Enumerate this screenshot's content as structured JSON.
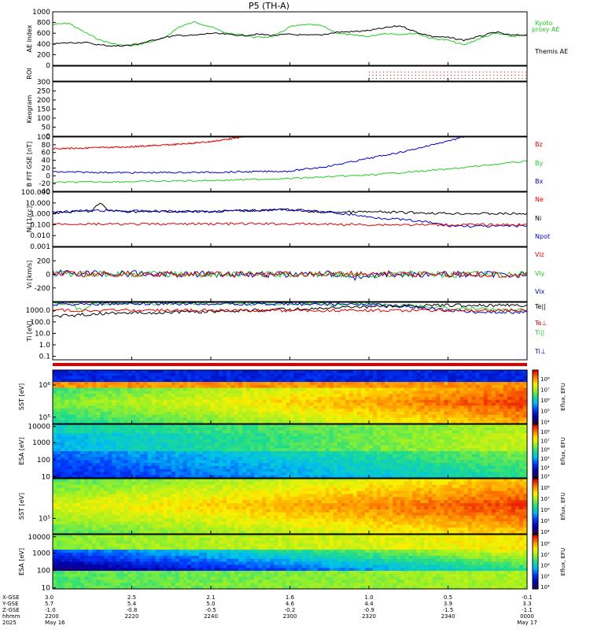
{
  "title": "P5 (TH-A)",
  "colors": {
    "black": "#000000",
    "red": "#dd0000",
    "green": "#22cc22",
    "blue": "#0000cc"
  },
  "chart_data": [
    {
      "type": "line",
      "panel": "ae",
      "ylabel": "AE index",
      "ylim": [
        0,
        1000
      ],
      "yticks": [
        "0",
        "200",
        "400",
        "600",
        "800",
        "1000"
      ],
      "legend": [
        "Kyoto",
        "proxy AE",
        "Themis AE"
      ],
      "series": [
        {
          "name": "Kyoto proxy AE",
          "color": "green",
          "x": [
            0,
            4,
            8,
            12,
            16,
            20,
            24,
            28,
            32,
            36,
            40,
            44,
            48,
            52,
            56,
            60,
            64,
            68,
            72,
            76,
            80,
            84,
            88,
            92,
            96,
            100,
            104,
            108,
            112,
            116,
            120
          ],
          "y": [
            760,
            790,
            620,
            470,
            390,
            360,
            430,
            500,
            720,
            810,
            720,
            600,
            560,
            520,
            540,
            720,
            760,
            740,
            600,
            560,
            540,
            600,
            580,
            600,
            500,
            470,
            380,
            500,
            600,
            540,
            560
          ]
        },
        {
          "name": "Themis AE",
          "color": "black",
          "x": [
            0,
            4,
            8,
            12,
            16,
            20,
            24,
            28,
            32,
            36,
            40,
            44,
            48,
            52,
            56,
            60,
            64,
            68,
            72,
            76,
            80,
            84,
            88,
            92,
            96,
            100,
            104,
            108,
            112,
            116,
            120
          ],
          "y": [
            400,
            420,
            430,
            380,
            360,
            380,
            440,
            520,
            560,
            560,
            600,
            580,
            560,
            580,
            560,
            580,
            560,
            570,
            620,
            630,
            650,
            700,
            740,
            620,
            540,
            520,
            470,
            540,
            620,
            560,
            570
          ]
        }
      ]
    },
    {
      "type": "scatter",
      "panel": "roi",
      "ylabel": "ROI",
      "series": [
        {
          "name": "",
          "color": "red",
          "x_start": 80,
          "x_end": 120,
          "rows": 3
        }
      ]
    },
    {
      "type": "line",
      "panel": "keogram",
      "ylabel": "Keogram",
      "ylim": [
        0,
        300
      ],
      "yticks": [
        "0",
        "50",
        "100",
        "150",
        "200",
        "250",
        "300"
      ]
    },
    {
      "type": "line",
      "panel": "bfield",
      "ylabel": "B FIT GSE [nT]",
      "ylim": [
        -40,
        100
      ],
      "yticks": [
        "-40",
        "-20",
        "0",
        "20",
        "40",
        "60",
        "80",
        "100"
      ],
      "legend": [
        "Bz",
        "By",
        "Bx"
      ],
      "series": [
        {
          "name": "Bz",
          "color": "red",
          "x": [
            0,
            10,
            20,
            30,
            40,
            48
          ],
          "y": [
            70,
            72,
            75,
            80,
            88,
            100
          ]
        },
        {
          "name": "Bx",
          "color": "blue",
          "x": [
            0,
            10,
            20,
            40,
            60,
            70,
            80,
            90,
            100,
            104
          ],
          "y": [
            10,
            9,
            8,
            9,
            12,
            25,
            45,
            65,
            90,
            100
          ]
        },
        {
          "name": "By",
          "color": "green",
          "x": [
            0,
            10,
            20,
            40,
            60,
            80,
            100,
            120
          ],
          "y": [
            -17,
            -16,
            -15,
            -12,
            -7,
            2,
            17,
            38
          ]
        }
      ]
    },
    {
      "type": "line",
      "panel": "density",
      "ylabel": "Ni [1/cc]",
      "yscale": "log",
      "ylim": [
        0.001,
        100
      ],
      "yticks": [
        "0.001",
        "0.010",
        "0.100",
        "1.000",
        "10.000",
        "100.000"
      ],
      "legend": [
        "Ne",
        "Ni",
        "Npot"
      ],
      "series": [
        {
          "name": "Ni",
          "color": "black",
          "x": [
            0,
            5,
            10,
            12,
            14,
            20,
            40,
            60,
            64,
            70,
            80,
            100,
            120
          ],
          "y": [
            1.2,
            1.5,
            1.8,
            8,
            2,
            1.6,
            1.7,
            2.5,
            1.6,
            1.4,
            1.5,
            1.1,
            1.0
          ]
        },
        {
          "name": "Npot",
          "color": "blue",
          "x": [
            0,
            10,
            20,
            40,
            60,
            70,
            80,
            90,
            100,
            110,
            120
          ],
          "y": [
            1.5,
            2.0,
            1.8,
            1.6,
            2.4,
            1.3,
            0.5,
            0.25,
            0.08,
            0.07,
            0.08
          ]
        },
        {
          "name": "Ne",
          "color": "red",
          "x": [
            0,
            20,
            40,
            60,
            80,
            100,
            120
          ],
          "y": [
            0.12,
            0.11,
            0.12,
            0.12,
            0.1,
            0.1,
            0.1
          ]
        }
      ]
    },
    {
      "type": "line",
      "panel": "velocity",
      "ylabel": "Vi [km/s]",
      "ylim": [
        -400,
        400
      ],
      "yticks": [
        "-200",
        "0",
        "200"
      ],
      "legend": [
        "Viz",
        "Viy",
        "Vix"
      ],
      "series": [
        {
          "name": "Vix",
          "color": "blue",
          "x": [
            0,
            20,
            40,
            60,
            70,
            75,
            78,
            80,
            85,
            90,
            100,
            120
          ],
          "y": [
            20,
            10,
            5,
            0,
            10,
            -20,
            -60,
            -20,
            0,
            5,
            0,
            0
          ]
        },
        {
          "name": "Viy",
          "color": "green",
          "x": [
            0,
            20,
            40,
            60,
            80,
            100,
            120
          ],
          "y": [
            10,
            5,
            0,
            0,
            -5,
            0,
            5
          ]
        },
        {
          "name": "Viz",
          "color": "red",
          "x": [
            0,
            20,
            40,
            60,
            80,
            100,
            120
          ],
          "y": [
            0,
            5,
            0,
            0,
            10,
            5,
            0
          ]
        }
      ]
    },
    {
      "type": "line",
      "panel": "temperature",
      "ylabel": "Ti [eV]",
      "yscale": "log",
      "ylim": [
        0.05,
        5000
      ],
      "yticks": [
        "0.1",
        "1.0",
        "10.0",
        "100.0",
        "1000.0"
      ],
      "legend": [
        "Te||",
        "Te⊥",
        "Ti||",
        "Ti⊥"
      ],
      "series": [
        {
          "name": "Ti||",
          "color": "green",
          "x": [
            0,
            5,
            6,
            8,
            10,
            20,
            40,
            60,
            80,
            90,
            100,
            110,
            120
          ],
          "y": [
            4000,
            3800,
            1500,
            800,
            3500,
            4000,
            3800,
            3500,
            3500,
            2500,
            1500,
            1200,
            1200
          ]
        },
        {
          "name": "Ti⊥",
          "color": "blue",
          "x": [
            0,
            20,
            40,
            60,
            80,
            90,
            100,
            110,
            120
          ],
          "y": [
            3500,
            3600,
            3800,
            3500,
            3200,
            2000,
            900,
            700,
            700
          ]
        },
        {
          "name": "Te||",
          "color": "black",
          "x": [
            0,
            5,
            10,
            20,
            30,
            40,
            60,
            80,
            90,
            100,
            110,
            120
          ],
          "y": [
            300,
            350,
            500,
            600,
            700,
            800,
            1200,
            2000,
            2500,
            2700,
            2800,
            2800
          ]
        },
        {
          "name": "Te⊥",
          "color": "red",
          "x": [
            0,
            120
          ],
          "y": [
            1000,
            1000
          ]
        }
      ]
    },
    {
      "type": "heatmap",
      "panel": "sst_ion",
      "ylabel": "SST [eV]",
      "yticks": [
        "10⁵",
        "10⁶"
      ],
      "colorbar_label": "Eflux, EFU",
      "colorbar_ticks": [
        "10⁴",
        "10⁵",
        "10⁶",
        "10⁷",
        "10⁸"
      ]
    },
    {
      "type": "heatmap",
      "panel": "esa_ion",
      "ylabel": "ESA [eV]",
      "yticks": [
        "10",
        "100",
        "1000",
        "10000"
      ],
      "colorbar_label": "Eflux, EFU",
      "colorbar_ticks": [
        "10³",
        "10⁴",
        "10⁵",
        "10⁶",
        "10⁷",
        "10⁸"
      ]
    },
    {
      "type": "heatmap",
      "panel": "sst_elec",
      "ylabel": "SST [eV]",
      "yticks": [
        "10⁵"
      ],
      "colorbar_label": "Eflux, EFU",
      "colorbar_ticks": [
        "10⁴",
        "10⁵",
        "10⁶",
        "10⁷",
        "10⁸"
      ]
    },
    {
      "type": "heatmap",
      "panel": "esa_elec",
      "ylabel": "ESA [eV]",
      "yticks": [
        "10",
        "100",
        "1000",
        "10000"
      ],
      "colorbar_label": "Eflux, EFU",
      "colorbar_ticks": [
        "10⁴",
        "10⁵",
        "10⁶",
        "10⁷",
        "10⁸"
      ]
    }
  ],
  "x_axis": {
    "row_labels": [
      "X-GSE",
      "Y-GSE",
      "Z-GSE",
      "hhmm",
      "2025"
    ],
    "ticks": [
      {
        "x": 0,
        "xgse": "3.0",
        "ygse": "5.7",
        "zgse": "-1.0",
        "hhmm": "2200",
        "date": "May 16"
      },
      {
        "x": 20,
        "xgse": "2.5",
        "ygse": "5.4",
        "zgse": "-0.8",
        "hhmm": "2220",
        "date": ""
      },
      {
        "x": 40,
        "xgse": "2.1",
        "ygse": "5.0",
        "zgse": "-0.5",
        "hhmm": "2240",
        "date": ""
      },
      {
        "x": 60,
        "xgse": "1.6",
        "ygse": "4.6",
        "zgse": "-0.2",
        "hhmm": "2300",
        "date": ""
      },
      {
        "x": 80,
        "xgse": "1.0",
        "ygse": "4.4",
        "zgse": "-0.9",
        "hhmm": "2320",
        "date": ""
      },
      {
        "x": 100,
        "xgse": "0.5",
        "ygse": "3.9",
        "zgse": "-1.5",
        "hhmm": "2340",
        "date": ""
      },
      {
        "x": 120,
        "xgse": "-0.1",
        "ygse": "3.3",
        "zgse": "-1.1",
        "hhmm": "0000",
        "date": "May 17"
      }
    ]
  }
}
